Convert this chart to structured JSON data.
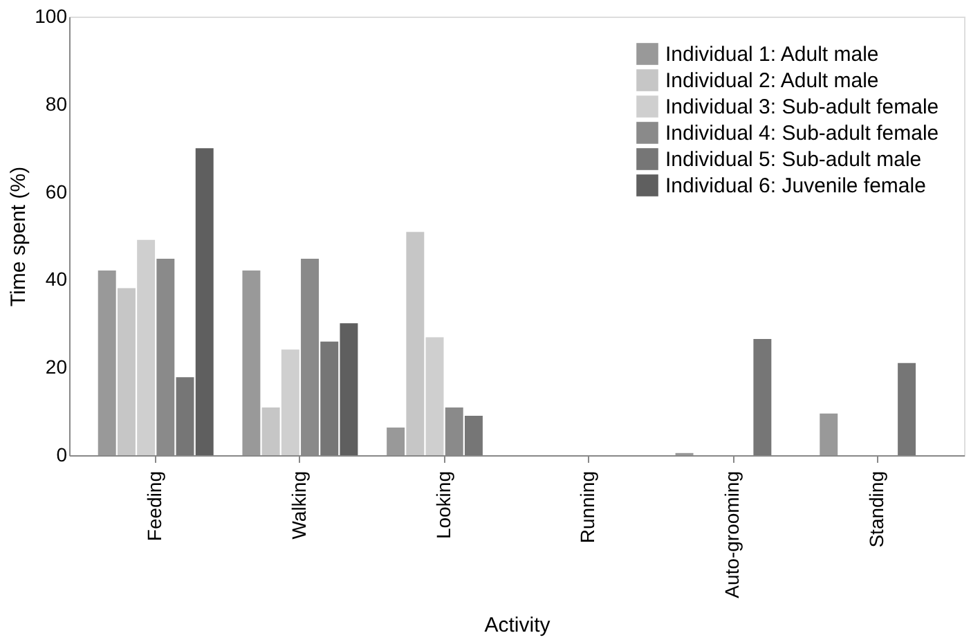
{
  "chart_data": {
    "type": "bar",
    "xlabel": "Activity",
    "ylabel": "Time spent (%)",
    "categories": [
      "Feeding",
      "Walking",
      "Looking",
      "Running",
      "Auto-grooming",
      "Standing"
    ],
    "series": [
      {
        "name": "Individual 1: Adult male",
        "color": "#999999",
        "values": [
          42.1,
          42.1,
          6.3,
          null,
          0.5,
          9.5
        ]
      },
      {
        "name": "Individual 2: Adult male",
        "color": "#c6c6c6",
        "values": [
          38.1,
          10.9,
          50.9,
          null,
          null,
          null
        ]
      },
      {
        "name": "Individual 3: Sub-adult female",
        "color": "#cfcfcf",
        "values": [
          49.1,
          24.1,
          26.9,
          null,
          null,
          null
        ]
      },
      {
        "name": "Individual 4: Sub-adult female",
        "color": "#8a8a8a",
        "values": [
          44.8,
          44.8,
          10.9,
          null,
          null,
          null
        ]
      },
      {
        "name": "Individual 5: Sub-adult male",
        "color": "#767676",
        "values": [
          17.8,
          25.9,
          9,
          null,
          26.5,
          21
        ]
      },
      {
        "name": "Individual 6: Juvenile female",
        "color": "#5f5f5f",
        "values": [
          70,
          30.1,
          null,
          null,
          null,
          null
        ]
      }
    ],
    "ylim": [
      0,
      100
    ],
    "yticks": [
      0,
      20,
      40,
      60,
      80,
      100
    ],
    "grid": false,
    "legend": "top right"
  }
}
